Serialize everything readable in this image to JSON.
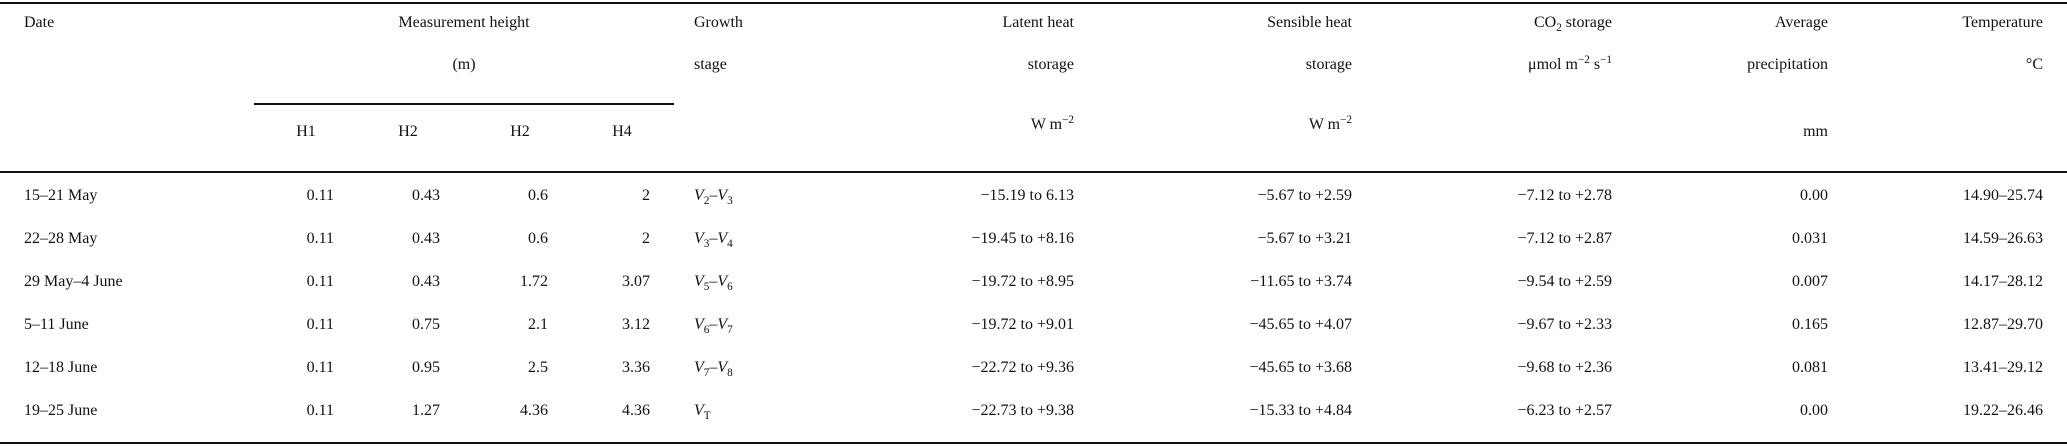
{
  "header": {
    "date": "Date",
    "measurement_height_line1": "Measurement height",
    "measurement_height_line2": "(m)",
    "h1": "H1",
    "h2a": "H2",
    "h2b": "H2",
    "h4": "H4",
    "growth_line1": "Growth",
    "growth_line2": "stage",
    "latent_line1": "Latent heat",
    "latent_line2": "storage",
    "latent_unit": "W m−2",
    "sensible_line1": "Sensible heat",
    "sensible_line2": "storage",
    "sensible_unit": "W m−2",
    "co2_line1": "CO2 storage",
    "co2_line2": "μmol m−2 s−1",
    "precip_line1": "Average",
    "precip_line2": "precipitation",
    "precip_unit": "mm",
    "temp_line1": "Temperature",
    "temp_line2": "°C"
  },
  "rows": [
    {
      "date": "15–21 May",
      "h1": "0.11",
      "h2a": "0.43",
      "h2b": "0.6",
      "h4": "2",
      "stage_a": "V",
      "stage_a_sub": "2",
      "stage_b": "V",
      "stage_b_sub": "3",
      "latent": "−15.19 to 6.13",
      "sensible": "−5.67 to +2.59",
      "co2": "−7.12 to +2.78",
      "precip": "0.00",
      "temp": "14.90–25.74"
    },
    {
      "date": "22–28 May",
      "h1": "0.11",
      "h2a": "0.43",
      "h2b": "0.6",
      "h4": "2",
      "stage_a": "V",
      "stage_a_sub": "3",
      "stage_b": "V",
      "stage_b_sub": "4",
      "latent": "−19.45 to +8.16",
      "sensible": "−5.67 to +3.21",
      "co2": "−7.12 to +2.87",
      "precip": "0.031",
      "temp": "14.59–26.63"
    },
    {
      "date": "29 May–4 June",
      "h1": "0.11",
      "h2a": "0.43",
      "h2b": "1.72",
      "h4": "3.07",
      "stage_a": "V",
      "stage_a_sub": "5",
      "stage_b": "V",
      "stage_b_sub": "6",
      "latent": "−19.72 to +8.95",
      "sensible": "−11.65 to +3.74",
      "co2": "−9.54 to +2.59",
      "precip": "0.007",
      "temp": "14.17–28.12"
    },
    {
      "date": "5–11 June",
      "h1": "0.11",
      "h2a": "0.75",
      "h2b": "2.1",
      "h4": "3.12",
      "stage_a": "V",
      "stage_a_sub": "6",
      "stage_b": "V",
      "stage_b_sub": "7",
      "latent": "−19.72 to +9.01",
      "sensible": "−45.65 to +4.07",
      "co2": "−9.67 to +2.33",
      "precip": "0.165",
      "temp": "12.87–29.70"
    },
    {
      "date": "12–18 June",
      "h1": "0.11",
      "h2a": "0.95",
      "h2b": "2.5",
      "h4": "3.36",
      "stage_a": "V",
      "stage_a_sub": "7",
      "stage_b": "V",
      "stage_b_sub": "8",
      "latent": "−22.72 to +9.36",
      "sensible": "−45.65 to +3.68",
      "co2": "−9.68 to +2.36",
      "precip": "0.081",
      "temp": "13.41–29.12"
    },
    {
      "date": "19–25 June",
      "h1": "0.11",
      "h2a": "1.27",
      "h2b": "4.36",
      "h4": "4.36",
      "stage_a": "V",
      "stage_a_sub": "T",
      "stage_b": "",
      "stage_b_sub": "",
      "latent": "−22.73 to +9.38",
      "sensible": "−15.33 to +4.84",
      "co2": "−6.23 to +2.57",
      "precip": "0.00",
      "temp": "19.22–26.46"
    }
  ]
}
